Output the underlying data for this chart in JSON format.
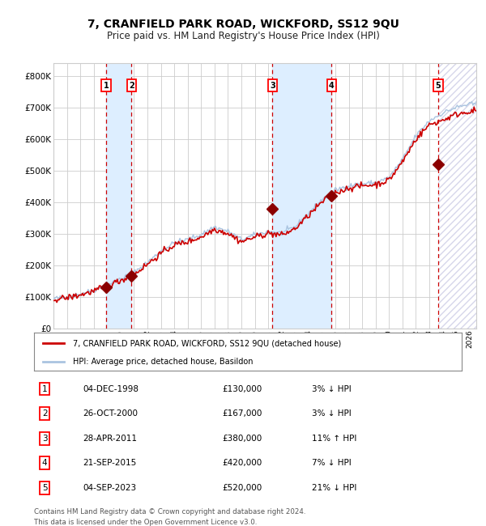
{
  "title": "7, CRANFIELD PARK ROAD, WICKFORD, SS12 9QU",
  "subtitle": "Price paid vs. HM Land Registry's House Price Index (HPI)",
  "xlim": [
    1995.0,
    2026.5
  ],
  "ylim": [
    0,
    840000
  ],
  "yticks": [
    0,
    100000,
    200000,
    300000,
    400000,
    500000,
    600000,
    700000,
    800000
  ],
  "ytick_labels": [
    "£0",
    "£100K",
    "£200K",
    "£300K",
    "£400K",
    "£500K",
    "£600K",
    "£700K",
    "£800K"
  ],
  "sales": [
    {
      "label": 1,
      "date_num": 1998.92,
      "price": 130000,
      "hpi_rel": "3% ↓ HPI",
      "date_str": "04-DEC-1998"
    },
    {
      "label": 2,
      "date_num": 2000.82,
      "price": 167000,
      "hpi_rel": "3% ↓ HPI",
      "date_str": "26-OCT-2000"
    },
    {
      "label": 3,
      "date_num": 2011.32,
      "price": 380000,
      "hpi_rel": "11% ↑ HPI",
      "date_str": "28-APR-2011"
    },
    {
      "label": 4,
      "date_num": 2015.72,
      "price": 420000,
      "hpi_rel": "7% ↓ HPI",
      "date_str": "21-SEP-2015"
    },
    {
      "label": 5,
      "date_num": 2023.67,
      "price": 520000,
      "hpi_rel": "21% ↓ HPI",
      "date_str": "04-SEP-2023"
    }
  ],
  "legend_line1": "7, CRANFIELD PARK ROAD, WICKFORD, SS12 9QU (detached house)",
  "legend_line2": "HPI: Average price, detached house, Basildon",
  "footer1": "Contains HM Land Registry data © Crown copyright and database right 2024.",
  "footer2": "This data is licensed under the Open Government Licence v3.0.",
  "hpi_color": "#aac4e0",
  "price_color": "#cc0000",
  "sale_marker_color": "#8b0000",
  "vline_color": "#cc0000",
  "shade_color": "#ddeeff",
  "grid_color": "#cccccc",
  "bg_color": "#ffffff",
  "hpi_anchors_years": [
    1995,
    1996,
    1997,
    1998,
    1999,
    2000,
    2001,
    2002,
    2003,
    2004,
    2005,
    2006,
    2007,
    2008,
    2009,
    2010,
    2011,
    2012,
    2013,
    2014,
    2015,
    2016,
    2017,
    2018,
    2019,
    2020,
    2021,
    2022,
    2023,
    2024,
    2025,
    2026
  ],
  "hpi_anchors_vals": [
    95000,
    100000,
    110000,
    122000,
    138000,
    158000,
    178000,
    210000,
    245000,
    272000,
    282000,
    298000,
    322000,
    308000,
    282000,
    296000,
    308000,
    302000,
    322000,
    365000,
    408000,
    438000,
    452000,
    458000,
    462000,
    478000,
    535000,
    610000,
    658000,
    682000,
    700000,
    710000
  ],
  "price_anchors_years": [
    1995,
    1996,
    1997,
    1998,
    1999,
    2000,
    2001,
    2002,
    2003,
    2004,
    2005,
    2006,
    2007,
    2008,
    2009,
    2010,
    2011,
    2012,
    2013,
    2014,
    2015,
    2016,
    2017,
    2018,
    2019,
    2020,
    2021,
    2022,
    2023,
    2024,
    2025,
    2026
  ],
  "price_anchors_vals": [
    93000,
    98000,
    107000,
    119000,
    135000,
    153000,
    172000,
    204000,
    238000,
    265000,
    275000,
    290000,
    315000,
    302000,
    275000,
    290000,
    302000,
    296000,
    316000,
    358000,
    400000,
    430000,
    445000,
    452000,
    456000,
    470000,
    528000,
    600000,
    645000,
    660000,
    678000,
    688000
  ]
}
